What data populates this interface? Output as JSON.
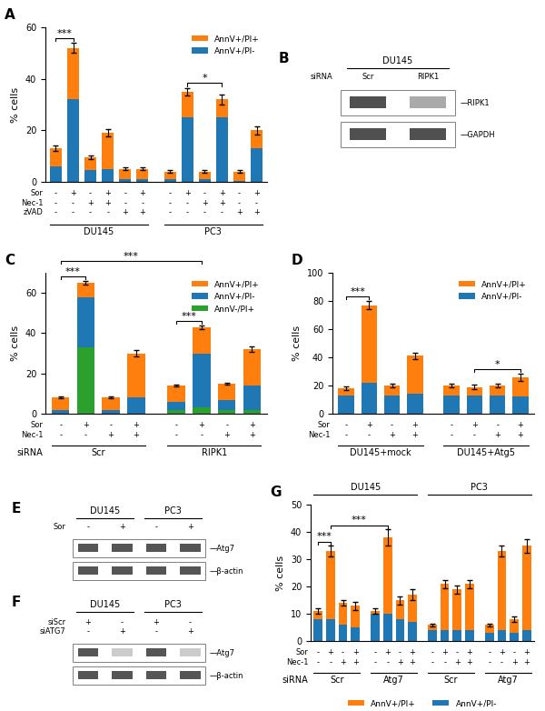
{
  "chart_data": [
    {
      "type": "bar",
      "title": "A",
      "ylabel": "% cells",
      "stacked": true,
      "legend": "upper right",
      "categories": [
        "-\n-\n-",
        "+\n-\n-",
        "-\n+\n-",
        "+\n+\n-",
        "-\n-\n+",
        "+\n-\n+",
        "-\n-\n-",
        "+\n-\n-",
        "-\n+\n-",
        "+\n+\n-",
        "-\n-\n+",
        "+\n-\n+"
      ],
      "category_rows": [
        "Sor",
        "Nec-1",
        "zVAD"
      ],
      "groups": [
        {
          "name": "DU145",
          "count": 6
        },
        {
          "name": "PC3",
          "count": 6
        }
      ],
      "series": [
        {
          "name": "AnnV+/PI-",
          "color": "#1f77b4",
          "values": [
            6.0,
            32.0,
            4.5,
            5.0,
            1.0,
            1.0,
            1.0,
            25.0,
            1.0,
            25.0,
            0.5,
            13.0
          ]
        },
        {
          "name": "AnnV+/PI+",
          "color": "#ff7f0e",
          "values": [
            7.0,
            20.0,
            5.0,
            14.0,
            4.0,
            4.0,
            3.0,
            10.0,
            3.0,
            7.0,
            3.5,
            7.0
          ]
        }
      ],
      "errors": [
        1.0,
        2.0,
        0.8,
        1.5,
        0.5,
        0.5,
        0.5,
        1.5,
        0.5,
        2.0,
        0.5,
        1.5
      ],
      "annotations": [
        {
          "text": "***",
          "from": 0,
          "to": 1
        },
        {
          "text": "*",
          "from": 7,
          "to": 9
        }
      ],
      "ylim": [
        0,
        60
      ],
      "yticks": [
        0,
        20,
        40,
        60
      ]
    },
    {
      "type": "blot",
      "title": "B",
      "categories": [
        "Scr",
        "RIPK1"
      ],
      "category_rows": [
        "siRNA"
      ],
      "groups": [
        {
          "name": "DU145",
          "count": 2
        }
      ],
      "series": [
        {
          "name": "—RIPK1",
          "colors": [
            "#505050",
            "#AAAAAA"
          ]
        },
        {
          "name": "—GAPDH",
          "colors": [
            "#505050",
            "#505050"
          ]
        }
      ]
    },
    {
      "type": "bar",
      "title": "C",
      "ylabel": "% cells",
      "stacked": true,
      "legend": "upper right",
      "categories": [
        "-\n-",
        "+\n-",
        "-\n+",
        "+\n+",
        "-\n-",
        "+\n-",
        "-\n+",
        "+\n+"
      ],
      "category_rows": [
        "Sor",
        "Nec-1"
      ],
      "groups": [
        {
          "name": "Scr",
          "count": 4
        },
        {
          "name": "RIPK1",
          "count": 4
        }
      ],
      "group_title": "siRNA",
      "series": [
        {
          "name": "AnnV-/PI+",
          "color": "#2ca02c",
          "values": [
            0,
            33.0,
            0,
            0,
            2.0,
            3.0,
            2.0,
            2.0
          ]
        },
        {
          "name": "AnnV+/PI-",
          "color": "#1f77b4",
          "values": [
            2.0,
            25.0,
            2.0,
            8.0,
            4.0,
            27.0,
            5.0,
            12.0
          ]
        },
        {
          "name": "AnnV+/PI+",
          "color": "#ff7f0e",
          "values": [
            6.0,
            7.0,
            6.0,
            22.0,
            8.0,
            13.0,
            8.0,
            18.0
          ]
        }
      ],
      "errors": [
        0.5,
        1.0,
        0.5,
        1.5,
        0.5,
        1.0,
        0.5,
        1.5
      ],
      "annotations": [
        {
          "text": "***",
          "from": 0,
          "to": 1
        },
        {
          "text": "***",
          "from": 0,
          "to": 5
        },
        {
          "text": "***",
          "from": 4,
          "to": 5
        }
      ],
      "ylim": [
        0,
        70
      ],
      "yticks": [
        0,
        20,
        40,
        60
      ]
    },
    {
      "type": "bar",
      "title": "D",
      "ylabel": "% cells",
      "stacked": true,
      "legend": "upper right",
      "categories": [
        "-\n-",
        "+\n-",
        "-\n+",
        "+\n+",
        "-\n-",
        "+\n-",
        "-\n+",
        "+\n+"
      ],
      "category_rows": [
        "Sor",
        "Nec-1"
      ],
      "groups": [
        {
          "name": "DU145+mock",
          "count": 4
        },
        {
          "name": "DU145+Atg5",
          "count": 4
        }
      ],
      "series": [
        {
          "name": "AnnV+/PI-",
          "color": "#1f77b4",
          "values": [
            13.0,
            22.0,
            13.0,
            14.0,
            13.0,
            13.0,
            13.0,
            12.0
          ]
        },
        {
          "name": "AnnV+/PI+",
          "color": "#ff7f0e",
          "values": [
            5.0,
            55.0,
            7.0,
            27.0,
            7.0,
            6.0,
            7.0,
            14.0
          ]
        }
      ],
      "errors": [
        1.5,
        3.0,
        1.5,
        2.5,
        1.0,
        1.5,
        1.0,
        2.5
      ],
      "annotations": [
        {
          "text": "***",
          "from": 0,
          "to": 1
        },
        {
          "text": "*",
          "from": 5,
          "to": 7
        }
      ],
      "ylim": [
        0,
        100
      ],
      "yticks": [
        0,
        20,
        40,
        60,
        80,
        100
      ]
    },
    {
      "type": "blot",
      "title": "E",
      "categories": [
        "-",
        "+",
        "-",
        "+"
      ],
      "category_rows": [
        "Sor"
      ],
      "groups": [
        {
          "name": "DU145",
          "count": 2
        },
        {
          "name": "PC3",
          "count": 2
        }
      ],
      "series": [
        {
          "name": "—Atg7",
          "colors": [
            "#555555",
            "#555555",
            "#555555",
            "#555555"
          ]
        },
        {
          "name": "—β-actin",
          "colors": [
            "#555555",
            "#555555",
            "#555555",
            "#555555"
          ]
        }
      ]
    },
    {
      "type": "blot",
      "title": "F",
      "categories": [
        "+\n-",
        "-\n+",
        "+\n-",
        "-\n+"
      ],
      "category_rows": [
        "siScr",
        "siATG7"
      ],
      "groups": [
        {
          "name": "DU145",
          "count": 2
        },
        {
          "name": "PC3",
          "count": 2
        }
      ],
      "series": [
        {
          "name": "—Atg7",
          "colors": [
            "#555555",
            "#CCCCCC",
            "#555555",
            "#CCCCCC"
          ]
        },
        {
          "name": "—β-actin",
          "colors": [
            "#555555",
            "#555555",
            "#555555",
            "#555555"
          ]
        }
      ]
    },
    {
      "type": "bar",
      "title": "G",
      "ylabel": "% cells",
      "stacked": true,
      "legend": "below",
      "categories": [
        "-\n-",
        "+\n-",
        "-\n+",
        "+\n+",
        "-\n-",
        "+\n-",
        "-\n+",
        "+\n+",
        "-\n-",
        "+\n-",
        "-\n+",
        "+\n+",
        "-\n-",
        "+\n-",
        "-\n+",
        "+\n+"
      ],
      "category_rows": [
        "Sor",
        "Nec-1"
      ],
      "groups": [
        {
          "name": "Scr",
          "count": 4
        },
        {
          "name": "Atg7",
          "count": 4
        },
        {
          "name": "Scr",
          "count": 4
        },
        {
          "name": "Atg7",
          "count": 4
        }
      ],
      "group_title": "siRNA",
      "supergroups": [
        {
          "name": "DU145",
          "count": 8
        },
        {
          "name": "PC3",
          "count": 8
        }
      ],
      "series": [
        {
          "name": "AnnV+/PI-",
          "color": "#1f77b4",
          "values": [
            8.0,
            8.0,
            6.0,
            5.0,
            10.0,
            10.0,
            8.0,
            7.0,
            4.0,
            4.0,
            4.0,
            4.0,
            3.0,
            4.0,
            3.0,
            4.0
          ]
        },
        {
          "name": "AnnV+/PI+",
          "color": "#ff7f0e",
          "values": [
            3.0,
            25.0,
            8.0,
            8.0,
            1.0,
            28.0,
            7.0,
            10.0,
            2.0,
            17.0,
            15.0,
            17.0,
            3.0,
            29.0,
            5.0,
            31.0
          ]
        }
      ],
      "errors": [
        1.0,
        2.0,
        1.0,
        1.5,
        1.0,
        3.0,
        1.5,
        2.0,
        0.5,
        1.5,
        1.5,
        1.5,
        0.5,
        2.0,
        1.0,
        2.5
      ],
      "annotations": [
        {
          "text": "***",
          "from": 0,
          "to": 1
        },
        {
          "text": "***",
          "from": 1,
          "to": 5
        }
      ],
      "ylim": [
        0,
        50
      ],
      "yticks": [
        0,
        10,
        20,
        30,
        40,
        50
      ]
    }
  ]
}
